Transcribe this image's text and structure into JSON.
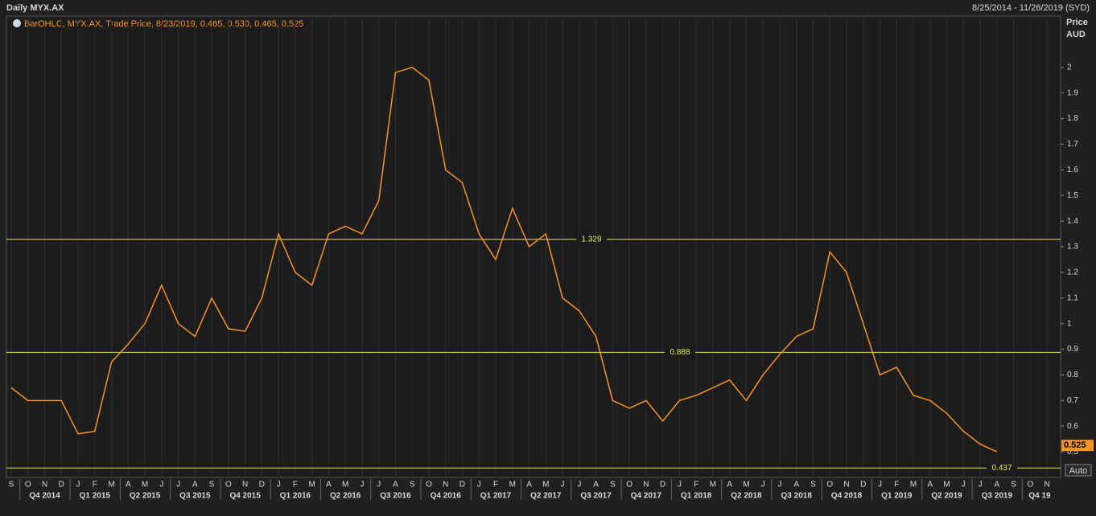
{
  "header": {
    "title": "Daily MYX.AX",
    "range": "8/25/2014 - 11/26/2019 (SYD)"
  },
  "chart_data": {
    "type": "line",
    "legend": "BarOHLC, MYX.AX, Trade Price, 8/23/2019, 0.465, 0.530, 0.465, 0.525",
    "y_label": "Price",
    "y_unit": "AUD",
    "scale_mode": "Auto",
    "categories": [
      "S",
      "O",
      "N",
      "D",
      "J",
      "F",
      "M",
      "A",
      "M",
      "J",
      "J",
      "A",
      "S",
      "O",
      "N",
      "D",
      "J",
      "F",
      "M",
      "A",
      "M",
      "J",
      "J",
      "A",
      "S",
      "O",
      "N",
      "D",
      "J",
      "F",
      "M",
      "A",
      "M",
      "J",
      "J",
      "A",
      "S",
      "O",
      "N",
      "D",
      "J",
      "F",
      "M",
      "A",
      "M",
      "J",
      "J",
      "A",
      "S",
      "O",
      "N",
      "D",
      "J",
      "F",
      "M",
      "A",
      "M",
      "J",
      "J",
      "A",
      "S",
      "O",
      "N"
    ],
    "quarters": [
      "Q4 2014",
      "Q1 2015",
      "Q2 2015",
      "Q3 2015",
      "Q4 2015",
      "Q1 2016",
      "Q2 2016",
      "Q3 2016",
      "Q4 2016",
      "Q1 2017",
      "Q2 2017",
      "Q3 2017",
      "Q4 2017",
      "Q1 2018",
      "Q2 2018",
      "Q3 2018",
      "Q4 2018",
      "Q1 2019",
      "Q2 2019",
      "Q3 2019",
      "Q4 19"
    ],
    "series": [
      {
        "name": "MYX.AX",
        "color": "#f7941d",
        "values": [
          0.75,
          0.7,
          0.7,
          0.7,
          0.57,
          0.58,
          0.85,
          0.92,
          1.0,
          1.15,
          1.0,
          0.95,
          1.1,
          0.98,
          0.97,
          1.1,
          1.35,
          1.2,
          1.15,
          1.35,
          1.38,
          1.35,
          1.48,
          1.98,
          2.0,
          1.95,
          1.6,
          1.55,
          1.35,
          1.25,
          1.45,
          1.3,
          1.35,
          1.1,
          1.05,
          0.95,
          0.7,
          0.67,
          0.7,
          0.62,
          0.7,
          0.72,
          0.75,
          0.78,
          0.7,
          0.8,
          0.88,
          0.95,
          0.98,
          1.28,
          1.2,
          1.0,
          0.8,
          0.83,
          0.72,
          0.7,
          0.65,
          0.58,
          0.53,
          0.5,
          null,
          null,
          null
        ]
      }
    ],
    "reference_lines": [
      1.329,
      0.888,
      0.437
    ],
    "last_value": 0.525,
    "ylim": [
      0.4,
      2.2
    ],
    "yticks": [
      0.5,
      0.6,
      0.7,
      0.8,
      0.9,
      1,
      1.1,
      1.2,
      1.3,
      1.4,
      1.5,
      1.6,
      1.7,
      1.8,
      1.9,
      2
    ]
  }
}
